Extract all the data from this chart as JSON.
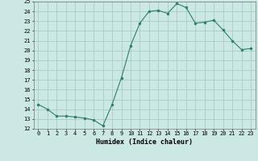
{
  "x": [
    0,
    1,
    2,
    3,
    4,
    5,
    6,
    7,
    8,
    9,
    10,
    11,
    12,
    13,
    14,
    15,
    16,
    17,
    18,
    19,
    20,
    21,
    22,
    23
  ],
  "y": [
    14.5,
    14.0,
    13.3,
    13.3,
    13.2,
    13.1,
    12.9,
    12.3,
    14.5,
    17.2,
    20.5,
    22.8,
    24.0,
    24.1,
    23.8,
    24.8,
    24.4,
    22.8,
    22.9,
    23.1,
    22.1,
    21.0,
    20.1,
    20.2
  ],
  "xlim": [
    -0.5,
    23.5
  ],
  "ylim": [
    12,
    25
  ],
  "yticks": [
    12,
    13,
    14,
    15,
    16,
    17,
    18,
    19,
    20,
    21,
    22,
    23,
    24,
    25
  ],
  "xticks": [
    0,
    1,
    2,
    3,
    4,
    5,
    6,
    7,
    8,
    9,
    10,
    11,
    12,
    13,
    14,
    15,
    16,
    17,
    18,
    19,
    20,
    21,
    22,
    23
  ],
  "xlabel": "Humidex (Indice chaleur)",
  "line_color": "#2d7d6f",
  "bg_color": "#cce8e4",
  "grid_color": "#a0c8c0",
  "tick_fontsize": 5.0,
  "xlabel_fontsize": 6.0
}
